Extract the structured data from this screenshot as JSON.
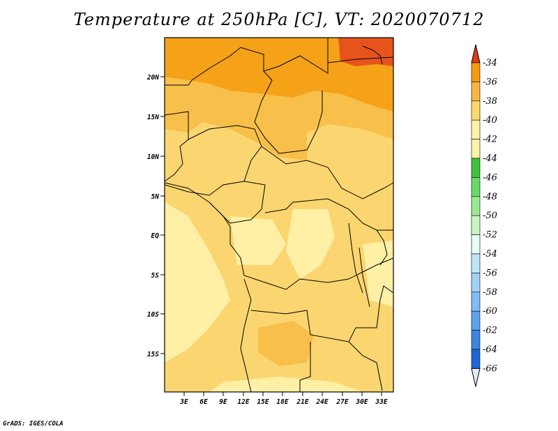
{
  "title": "Temperature at 250hPa [C], VT: 2020070712",
  "credit": "GrADS: IGES/COLA",
  "map": {
    "lat_labels": [
      "20N",
      "15N",
      "10N",
      "5N",
      "EQ",
      "5S",
      "10S",
      "15S"
    ],
    "lon_labels": [
      "3E",
      "6E",
      "9E",
      "12E",
      "15E",
      "18E",
      "21E",
      "24E",
      "27E",
      "30E",
      "33E"
    ]
  },
  "colorbar": {
    "labels": [
      "-34",
      "-36",
      "-38",
      "-40",
      "-42",
      "-44",
      "-46",
      "-48",
      "-50",
      "-52",
      "-54",
      "-56",
      "-58",
      "-60",
      "-62",
      "-64",
      "-66"
    ],
    "colors": [
      "#e64b1c",
      "#f06a10",
      "#f59a0e",
      "#f8b542",
      "#fbd86c",
      "#fff3a8",
      "#3fc23b",
      "#6ad96a",
      "#9be98f",
      "#c9f5c1",
      "#e6fff8",
      "#bfe6f7",
      "#a0d2f6",
      "#7fbdf2",
      "#5ba4ec",
      "#3b86e2",
      "#1f66d6",
      "#1746b6",
      "#0a1f7a",
      "#0f0f6f"
    ],
    "top_arrow_color": "#e03a12",
    "bottom_arrow_color": "#e8e8f8"
  },
  "fields": {
    "c34": "#e6541c",
    "c36": "#f5a219",
    "c38": "#f8bf4a",
    "c40": "#fbd670",
    "c42": "#fff0a6"
  }
}
